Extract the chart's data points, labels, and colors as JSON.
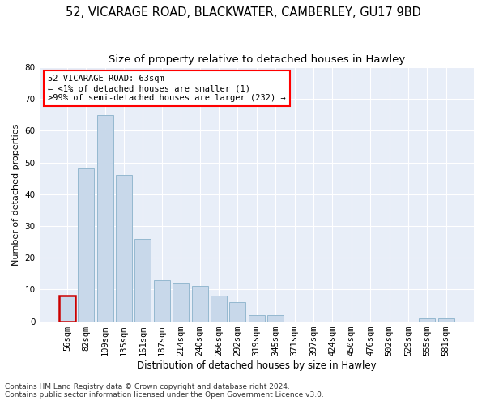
{
  "title1": "52, VICARAGE ROAD, BLACKWATER, CAMBERLEY, GU17 9BD",
  "title2": "Size of property relative to detached houses in Hawley",
  "xlabel": "Distribution of detached houses by size in Hawley",
  "ylabel": "Number of detached properties",
  "categories": [
    "56sqm",
    "82sqm",
    "109sqm",
    "135sqm",
    "161sqm",
    "187sqm",
    "214sqm",
    "240sqm",
    "266sqm",
    "292sqm",
    "319sqm",
    "345sqm",
    "371sqm",
    "397sqm",
    "424sqm",
    "450sqm",
    "476sqm",
    "502sqm",
    "529sqm",
    "555sqm",
    "581sqm"
  ],
  "values": [
    8,
    48,
    65,
    46,
    26,
    13,
    12,
    11,
    8,
    6,
    2,
    2,
    0,
    0,
    0,
    0,
    0,
    0,
    0,
    1,
    1
  ],
  "bar_color": "#c8d8ea",
  "bar_edge_color": "#94b8d0",
  "highlight_index": 0,
  "highlight_bar_edge_color": "#cc0000",
  "annotation_text_line1": "52 VICARAGE ROAD: 63sqm",
  "annotation_text_line2": "← <1% of detached houses are smaller (1)",
  "annotation_text_line3": ">99% of semi-detached houses are larger (232) →",
  "ylim": [
    0,
    80
  ],
  "yticks": [
    0,
    10,
    20,
    30,
    40,
    50,
    60,
    70,
    80
  ],
  "bg_color": "#e8eef8",
  "fig_bg_color": "#ffffff",
  "footer_line1": "Contains HM Land Registry data © Crown copyright and database right 2024.",
  "footer_line2": "Contains public sector information licensed under the Open Government Licence v3.0.",
  "title1_fontsize": 10.5,
  "title2_fontsize": 9.5,
  "xlabel_fontsize": 8.5,
  "ylabel_fontsize": 8,
  "tick_fontsize": 7.5,
  "ann_fontsize": 7.5,
  "footer_fontsize": 6.5
}
